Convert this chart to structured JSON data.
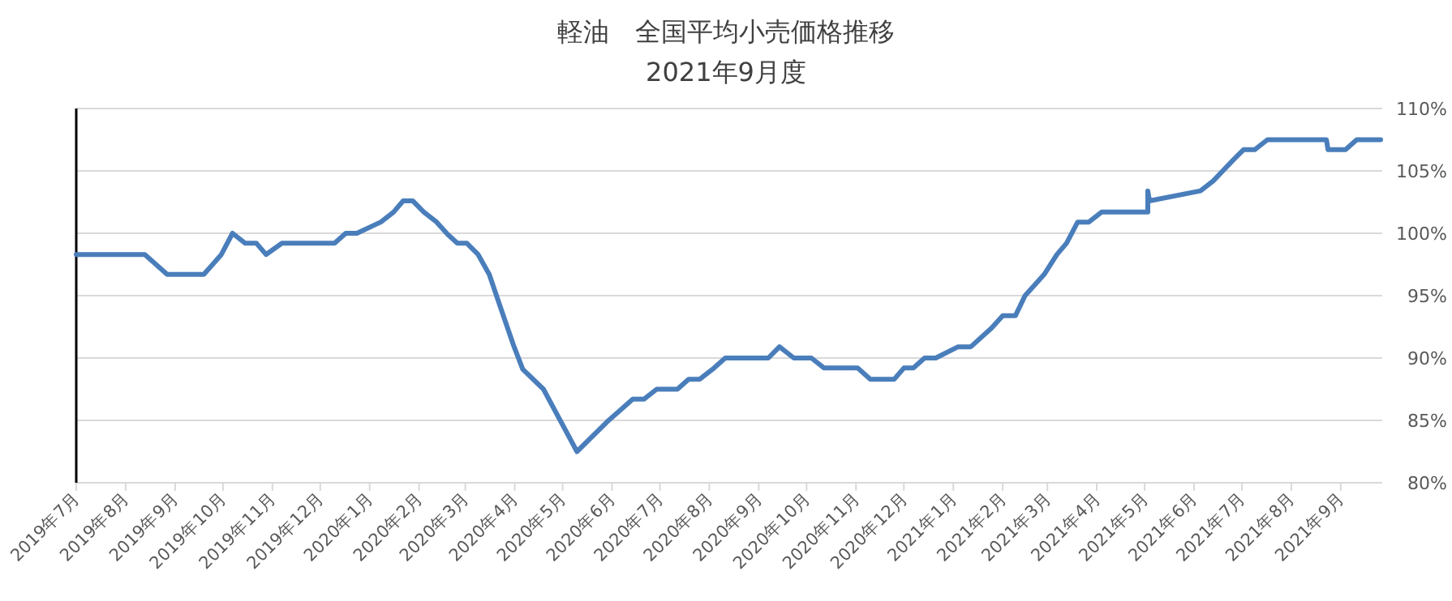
{
  "chart_data": {
    "type": "line",
    "title": "軽油　全国平均小売価格推移",
    "subtitle": "2021年9月度",
    "x": [
      "2019-07-01",
      "2019-08-13",
      "2019-08-27",
      "2019-09-19",
      "2019-09-30",
      "2019-10-07",
      "2019-10-15",
      "2019-10-22",
      "2019-10-28",
      "2019-11-07",
      "2019-12-10",
      "2019-12-17",
      "2019-12-24",
      "2020-01-08",
      "2020-01-16",
      "2020-01-22",
      "2020-01-28",
      "2020-02-04",
      "2020-02-12",
      "2020-02-19",
      "2020-02-25",
      "2020-03-02",
      "2020-03-09",
      "2020-03-16",
      "2020-03-24",
      "2020-03-31",
      "2020-04-06",
      "2020-04-19",
      "2020-05-10",
      "2020-05-29",
      "2020-06-14",
      "2020-06-21",
      "2020-06-29",
      "2020-07-12",
      "2020-07-19",
      "2020-07-26",
      "2020-08-04",
      "2020-08-11",
      "2020-09-07",
      "2020-09-14",
      "2020-09-23",
      "2020-10-04",
      "2020-10-12",
      "2020-11-02",
      "2020-11-10",
      "2020-11-25",
      "2020-12-01",
      "2020-12-07",
      "2020-12-14",
      "2020-12-21",
      "2021-01-04",
      "2021-01-12",
      "2021-01-25",
      "2021-02-01",
      "2021-02-09",
      "2021-02-15",
      "2021-02-27",
      "2021-03-07",
      "2021-03-13",
      "2021-03-20",
      "2021-03-27",
      "2021-04-04",
      "2021-05-03",
      "2021-05-03",
      "2021-05-04",
      "2021-06-05",
      "2021-06-13",
      "2021-06-25",
      "2021-07-02",
      "2021-07-09",
      "2021-07-17",
      "2021-08-23",
      "2021-08-24",
      "2021-09-04",
      "2021-09-11",
      "2021-09-26"
    ],
    "series": [
      {
        "color": "#4a7ebb",
        "values": [
          98.3,
          98.3,
          96.7,
          96.7,
          98.3,
          100.0,
          99.2,
          99.2,
          98.3,
          99.2,
          99.2,
          100.0,
          100.0,
          100.9,
          101.7,
          102.6,
          102.6,
          101.7,
          100.9,
          99.9,
          99.2,
          99.2,
          98.3,
          96.7,
          93.7,
          91.1,
          89.1,
          87.5,
          82.5,
          84.9,
          86.7,
          86.7,
          87.5,
          87.5,
          88.3,
          88.3,
          89.2,
          90.0,
          90.0,
          90.9,
          90.0,
          90.0,
          89.2,
          89.2,
          88.3,
          88.3,
          89.2,
          89.2,
          90.0,
          90.0,
          90.9,
          90.9,
          92.4,
          93.4,
          93.4,
          95.0,
          96.7,
          98.3,
          99.2,
          100.9,
          100.9,
          101.7,
          101.7,
          103.4,
          102.6,
          103.4,
          104.2,
          105.8,
          106.7,
          106.7,
          107.5,
          107.5,
          106.7,
          106.7,
          107.5,
          107.5
        ]
      }
    ],
    "xlim": [
      "2019-07-01",
      "2021-09-27"
    ],
    "xticks": [
      {
        "value": "2019-07-01",
        "label": "2019年7月"
      },
      {
        "value": "2019-08-01",
        "label": "2019年8月"
      },
      {
        "value": "2019-09-01",
        "label": "2019年9月"
      },
      {
        "value": "2019-10-01",
        "label": "2019年10月"
      },
      {
        "value": "2019-11-01",
        "label": "2019年11月"
      },
      {
        "value": "2019-12-01",
        "label": "2019年12月"
      },
      {
        "value": "2020-01-01",
        "label": "2020年1月"
      },
      {
        "value": "2020-02-01",
        "label": "2020年2月"
      },
      {
        "value": "2020-03-01",
        "label": "2020年3月"
      },
      {
        "value": "2020-04-01",
        "label": "2020年4月"
      },
      {
        "value": "2020-05-01",
        "label": "2020年5月"
      },
      {
        "value": "2020-06-01",
        "label": "2020年6月"
      },
      {
        "value": "2020-07-01",
        "label": "2020年7月"
      },
      {
        "value": "2020-08-01",
        "label": "2020年8月"
      },
      {
        "value": "2020-09-01",
        "label": "2020年9月"
      },
      {
        "value": "2020-10-01",
        "label": "2020年10月"
      },
      {
        "value": "2020-11-01",
        "label": "2020年11月"
      },
      {
        "value": "2020-12-01",
        "label": "2020年12月"
      },
      {
        "value": "2021-01-01",
        "label": "2021年1月"
      },
      {
        "value": "2021-02-01",
        "label": "2021年2月"
      },
      {
        "value": "2021-03-01",
        "label": "2021年3月"
      },
      {
        "value": "2021-04-01",
        "label": "2021年4月"
      },
      {
        "value": "2021-05-01",
        "label": "2021年5月"
      },
      {
        "value": "2021-06-01",
        "label": "2021年6月"
      },
      {
        "value": "2021-07-01",
        "label": "2021年7月"
      },
      {
        "value": "2021-08-01",
        "label": "2021年8月"
      },
      {
        "value": "2021-09-01",
        "label": "2021年9月"
      }
    ],
    "ylim": [
      80,
      110
    ],
    "yticks": [
      {
        "value": 80,
        "label": "80%"
      },
      {
        "value": 85,
        "label": "85%"
      },
      {
        "value": 90,
        "label": "90%"
      },
      {
        "value": 95,
        "label": "95%"
      },
      {
        "value": 100,
        "label": "100%"
      },
      {
        "value": 105,
        "label": "105%"
      },
      {
        "value": 110,
        "label": "110%"
      }
    ],
    "grid": "y"
  }
}
